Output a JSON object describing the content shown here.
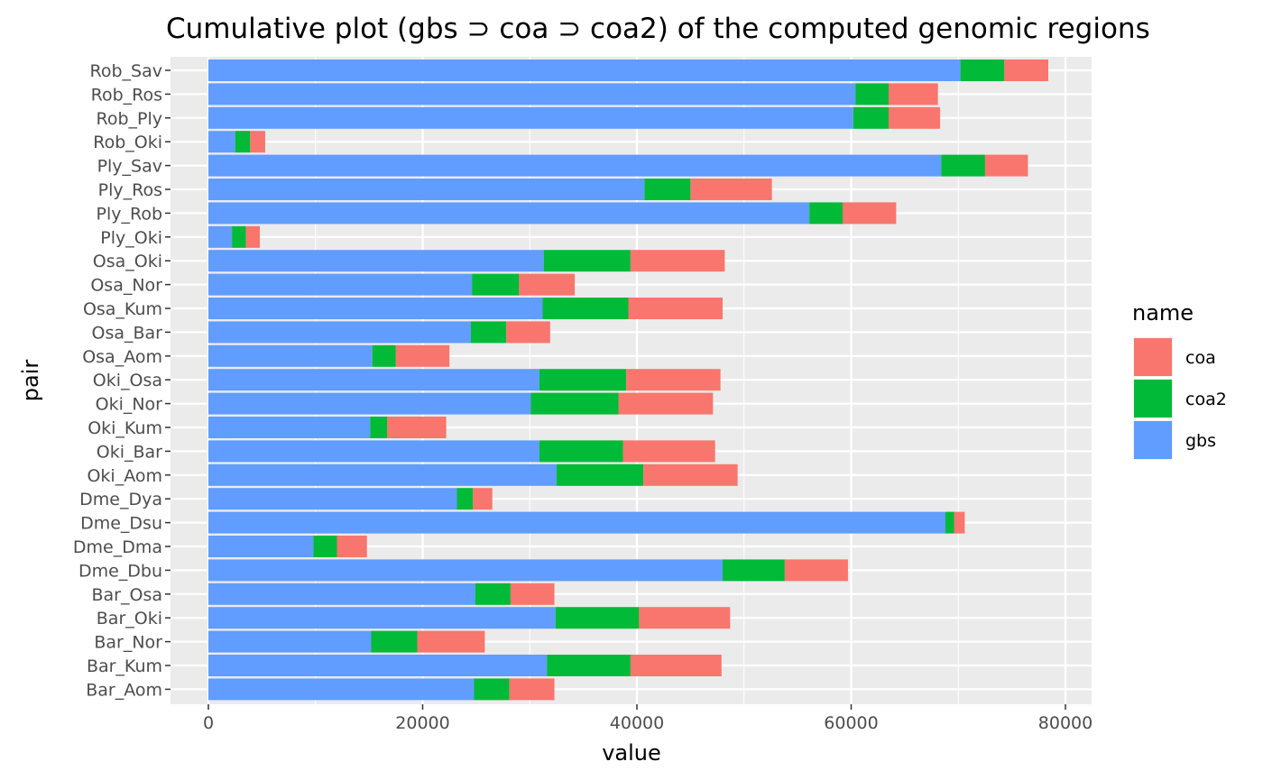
{
  "chart_data": {
    "type": "bar",
    "orientation": "horizontal",
    "stacked": true,
    "title": "Cumulative plot (gbs ⊃ coa ⊃ coa2) of the computed genomic regions",
    "xlabel": "value",
    "ylabel": "pair",
    "xlim": [
      -4000,
      82500
    ],
    "xticks": [
      0,
      20000,
      40000,
      60000,
      80000
    ],
    "grid": true,
    "legend": {
      "title": "name",
      "position": "right",
      "entries": [
        "coa",
        "coa2",
        "gbs"
      ]
    },
    "colors": {
      "gbs": "#619CFF",
      "coa2": "#00BA38",
      "coa": "#F8766D",
      "panel": "#EBEBEB",
      "grid": "#FFFFFF"
    },
    "categories": [
      "Rob_Sav",
      "Rob_Ros",
      "Rob_Ply",
      "Rob_Oki",
      "Ply_Sav",
      "Ply_Ros",
      "Ply_Rob",
      "Ply_Oki",
      "Osa_Oki",
      "Osa_Nor",
      "Osa_Kum",
      "Osa_Bar",
      "Osa_Aom",
      "Oki_Osa",
      "Oki_Nor",
      "Oki_Kum",
      "Oki_Bar",
      "Oki_Aom",
      "Dme_Dya",
      "Dme_Dsu",
      "Dme_Dma",
      "Dme_Dbu",
      "Bar_Osa",
      "Bar_Oki",
      "Bar_Nor",
      "Bar_Kum",
      "Bar_Aom"
    ],
    "series": [
      {
        "name": "gbs",
        "values": [
          70200,
          60400,
          60200,
          2500,
          68400,
          40700,
          56100,
          2200,
          31300,
          24600,
          31200,
          24500,
          15300,
          30900,
          30100,
          15100,
          30900,
          32500,
          23200,
          68800,
          9800,
          48000,
          24900,
          32400,
          15200,
          31600,
          24800
        ]
      },
      {
        "name": "coa2",
        "values": [
          4100,
          3100,
          3300,
          1400,
          4100,
          4300,
          3100,
          1300,
          8100,
          4400,
          8000,
          3300,
          2200,
          8100,
          8200,
          1600,
          7800,
          8100,
          1500,
          800,
          2200,
          5800,
          3300,
          7800,
          4300,
          7800,
          3300
        ]
      },
      {
        "name": "coa",
        "values": [
          4100,
          4600,
          4800,
          1400,
          4000,
          7600,
          5000,
          1300,
          8800,
          5200,
          8800,
          4100,
          5000,
          8800,
          8800,
          5500,
          8600,
          8800,
          1800,
          1000,
          2800,
          5900,
          4100,
          8500,
          6300,
          8500,
          4200
        ]
      }
    ]
  }
}
